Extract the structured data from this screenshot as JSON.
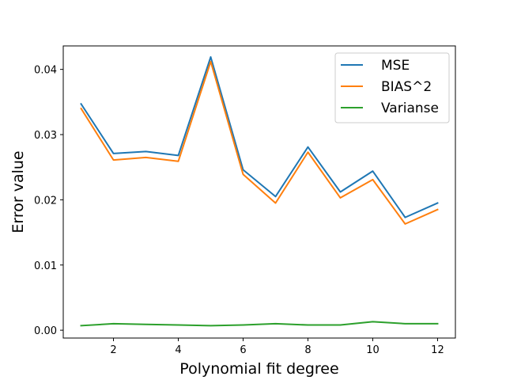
{
  "chart_data": {
    "type": "line",
    "xlabel": "Polynomial fit degree",
    "ylabel": "Error value",
    "x": [
      1,
      2,
      3,
      4,
      5,
      6,
      7,
      8,
      9,
      10,
      11,
      12
    ],
    "xticks": [
      "2",
      "4",
      "6",
      "8",
      "10",
      "12"
    ],
    "yticks": [
      "0.00",
      "0.01",
      "0.02",
      "0.03",
      "0.04"
    ],
    "xlim": [
      0.45,
      12.55
    ],
    "ylim": [
      -0.0012,
      0.0436
    ],
    "grid": false,
    "legend_position": "top-right",
    "series": [
      {
        "name": "MSE",
        "color": "#1f77b4",
        "values": [
          0.0347,
          0.0271,
          0.0274,
          0.0268,
          0.0419,
          0.0246,
          0.0205,
          0.0281,
          0.0212,
          0.0244,
          0.0173,
          0.0195
        ]
      },
      {
        "name": "BIAS^2",
        "color": "#ff7f0e",
        "values": [
          0.034,
          0.0261,
          0.0265,
          0.0259,
          0.0412,
          0.0239,
          0.0195,
          0.0273,
          0.0203,
          0.0231,
          0.0163,
          0.0185
        ]
      },
      {
        "name": "Varianse",
        "color": "#2ca02c",
        "values": [
          0.0007,
          0.001,
          0.0009,
          0.0008,
          0.0007,
          0.0008,
          0.001,
          0.0008,
          0.0008,
          0.0013,
          0.001,
          0.001
        ]
      }
    ]
  }
}
